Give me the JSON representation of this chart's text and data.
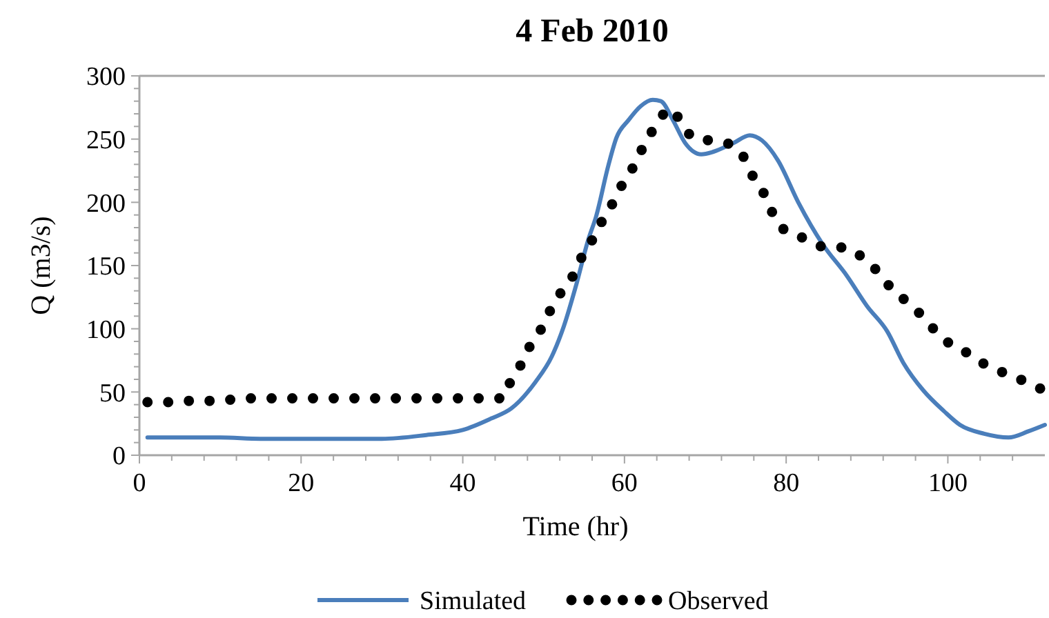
{
  "chart_data": {
    "type": "line",
    "title": "4 Feb 2010",
    "xlabel": "Time (hr)",
    "ylabel": "Q (m3/s)",
    "xlim": [
      0,
      112
    ],
    "xticks": [
      0,
      {
        "value": 4,
        "label": null
      },
      {
        "value": 8,
        "label": null
      },
      {
        "value": 12,
        "label": null
      },
      {
        "value": 16,
        "label": null
      },
      20,
      {
        "value": 24,
        "label": null
      },
      {
        "value": 28,
        "label": null
      },
      {
        "value": 32,
        "label": null
      },
      {
        "value": 36,
        "label": null
      },
      40,
      {
        "value": 44,
        "label": null
      },
      {
        "value": 48,
        "label": null
      },
      {
        "value": 52,
        "label": null
      },
      {
        "value": 56,
        "label": null
      },
      60,
      {
        "value": 64,
        "label": null
      },
      {
        "value": 68,
        "label": null
      },
      {
        "value": 72,
        "label": null
      },
      {
        "value": 76,
        "label": null
      },
      80,
      {
        "value": 84,
        "label": null
      },
      {
        "value": 88,
        "label": null
      },
      {
        "value": 92,
        "label": null
      },
      {
        "value": 96,
        "label": null
      },
      100,
      {
        "value": 104,
        "label": null
      },
      {
        "value": 108,
        "label": null
      }
    ],
    "ylim": [
      0,
      300
    ],
    "yticks": [
      0,
      {
        "value": 10,
        "label": null
      },
      {
        "value": 20,
        "label": null
      },
      {
        "value": 30,
        "label": null
      },
      {
        "value": 40,
        "label": null
      },
      50,
      {
        "value": 60,
        "label": null
      },
      {
        "value": 70,
        "label": null
      },
      {
        "value": 80,
        "label": null
      },
      {
        "value": 90,
        "label": null
      },
      100,
      {
        "value": 110,
        "label": null
      },
      {
        "value": 120,
        "label": null
      },
      {
        "value": 130,
        "label": null
      },
      {
        "value": 140,
        "label": null
      },
      150,
      {
        "value": 160,
        "label": null
      },
      {
        "value": 170,
        "label": null
      },
      {
        "value": 180,
        "label": null
      },
      {
        "value": 190,
        "label": null
      },
      200,
      {
        "value": 210,
        "label": null
      },
      {
        "value": 220,
        "label": null
      },
      {
        "value": 230,
        "label": null
      },
      {
        "value": 240,
        "label": null
      },
      250,
      {
        "value": 260,
        "label": null
      },
      {
        "value": 270,
        "label": null
      },
      {
        "value": 280,
        "label": null
      },
      {
        "value": 290,
        "label": null
      },
      300
    ],
    "grid": false,
    "legend": "bottom",
    "series": [
      {
        "name": "Simulated",
        "color": "#4a7ebb",
        "line_style": "solid",
        "marker": "none",
        "x": [
          1,
          5,
          10,
          15,
          20,
          25,
          30,
          35.5,
          40,
          43.5,
          46,
          49,
          51,
          52.5,
          54,
          55.5,
          56.5,
          58,
          59,
          60.5,
          62,
          63.5,
          64.5,
          66,
          67.5,
          69.5,
          71,
          73.5,
          75.5,
          77,
          79,
          81.5,
          84.5,
          87.5,
          90,
          92.5,
          94.5,
          97,
          99.5,
          101.5,
          104.5,
          107.5,
          110,
          112
        ],
        "values": [
          14,
          14,
          14,
          13,
          13,
          13,
          13,
          16,
          20,
          29,
          37,
          58,
          78,
          102,
          134,
          170,
          189,
          229,
          251,
          265,
          276,
          281,
          280,
          265,
          247,
          238,
          240,
          247,
          253,
          249,
          233,
          200,
          167,
          142,
          118,
          98,
          73,
          51,
          35,
          24,
          17,
          14,
          19,
          24
        ]
      },
      {
        "name": "Observed",
        "color": "#000000",
        "line_style": "dotted",
        "marker": "none",
        "x": [
          1,
          3.5,
          6,
          9,
          11.5,
          14,
          16.5,
          19,
          21.5,
          24,
          27,
          29.5,
          32,
          34.5,
          37,
          39.5,
          42.5,
          45,
          46,
          47.5,
          48.5,
          50,
          51,
          52.5,
          54,
          55,
          56.5,
          57.5,
          59,
          60,
          61.5,
          62.5,
          64,
          65.5,
          67,
          68.5,
          70.5,
          73,
          75,
          76,
          77.5,
          78.5,
          80,
          82.5,
          84.5,
          87.5,
          89.5,
          91.5,
          93,
          95,
          97,
          98.5,
          100.5,
          103,
          105,
          107.5,
          110,
          112
        ],
        "values": [
          42,
          42,
          43,
          43,
          44,
          45,
          45,
          45,
          45,
          45,
          45,
          45,
          45,
          45,
          45,
          45,
          45,
          45,
          60,
          75,
          89,
          103,
          117,
          132,
          146,
          161,
          175,
          189,
          204,
          218,
          232,
          247,
          261,
          274,
          264,
          251,
          249,
          246,
          233,
          219,
          204,
          189,
          177,
          171,
          165,
          164,
          156,
          144,
          132,
          121,
          109,
          98,
          87,
          79,
          70,
          64,
          57,
          51
        ]
      }
    ]
  }
}
